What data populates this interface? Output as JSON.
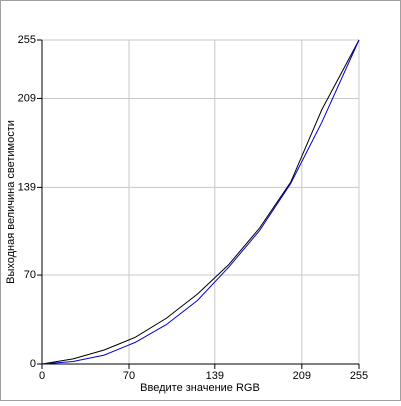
{
  "chart_data": {
    "type": "line",
    "x_label": "Введите значение RGB",
    "y_label": "Выходная величина светимости",
    "x": [
      0,
      25,
      50,
      75,
      100,
      125,
      150,
      175,
      200,
      225,
      255
    ],
    "series": [
      {
        "color": "#000000",
        "values": [
          0,
          4,
          11,
          21,
          36,
          55,
          78,
          107,
          143,
          200,
          255
        ]
      },
      {
        "color": "#0000cc",
        "values": [
          0,
          2,
          7,
          17,
          31,
          50,
          76,
          105,
          142,
          190,
          255
        ]
      }
    ],
    "xlim": [
      0,
      255
    ],
    "ylim": [
      0,
      255
    ],
    "xticks": [
      0,
      70,
      139,
      209,
      255
    ],
    "yticks": [
      0,
      70,
      139,
      209,
      255
    ],
    "grid": true
  }
}
